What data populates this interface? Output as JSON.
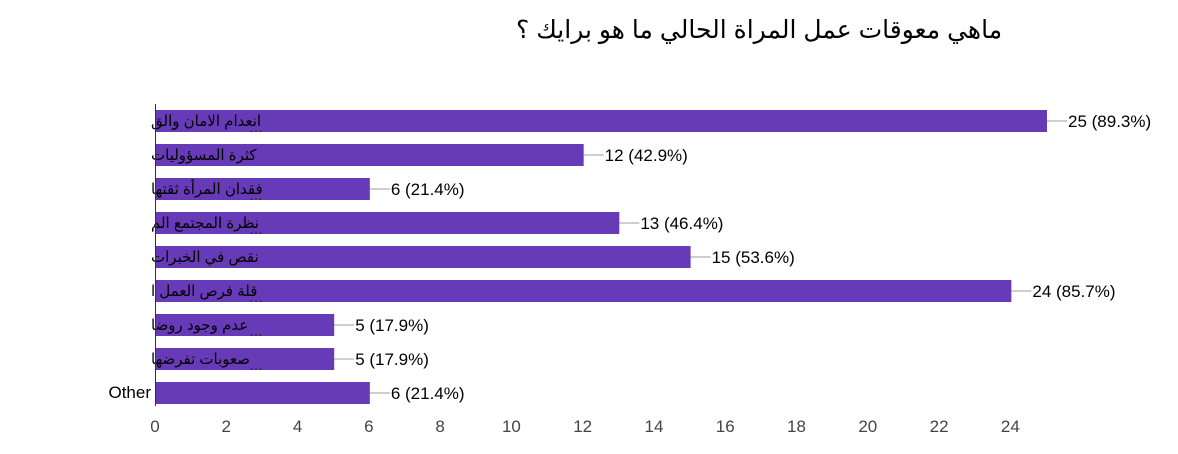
{
  "chart_data": {
    "type": "bar",
    "orientation": "horizontal",
    "title": "ماهي معوقات عمل المراة الحالي ما هو برايك ؟",
    "xlabel": "",
    "ylabel": "",
    "categories": [
      "انعدام الامان والق",
      "كثرة المسؤوليات",
      "فقدان المرأة ثقتها",
      "نظرة المجتمع الم",
      "نقص في الخبرات",
      "قلة فرص العمل ا",
      "عدم وجود روضا",
      "صعوبات تفرضها",
      "Other"
    ],
    "truncated": [
      true,
      false,
      true,
      true,
      false,
      true,
      true,
      true,
      false
    ],
    "ellipsis_text": "…",
    "values": [
      25,
      12,
      6,
      13,
      15,
      24,
      5,
      5,
      6
    ],
    "value_labels": [
      "25 (89.3%)",
      "12 (42.9%)",
      "6 (21.4%)",
      "13 (46.4%)",
      "15 (53.6%)",
      "24 (85.7%)",
      "5 (17.9%)",
      "5 (17.9%)",
      "6 (21.4%)"
    ],
    "xlim": [
      0,
      25
    ],
    "xticks": [
      0,
      2,
      4,
      6,
      8,
      10,
      12,
      14,
      16,
      18,
      20,
      22,
      24
    ],
    "bar_color": "#673ab7",
    "grid": false,
    "legend": "none"
  }
}
